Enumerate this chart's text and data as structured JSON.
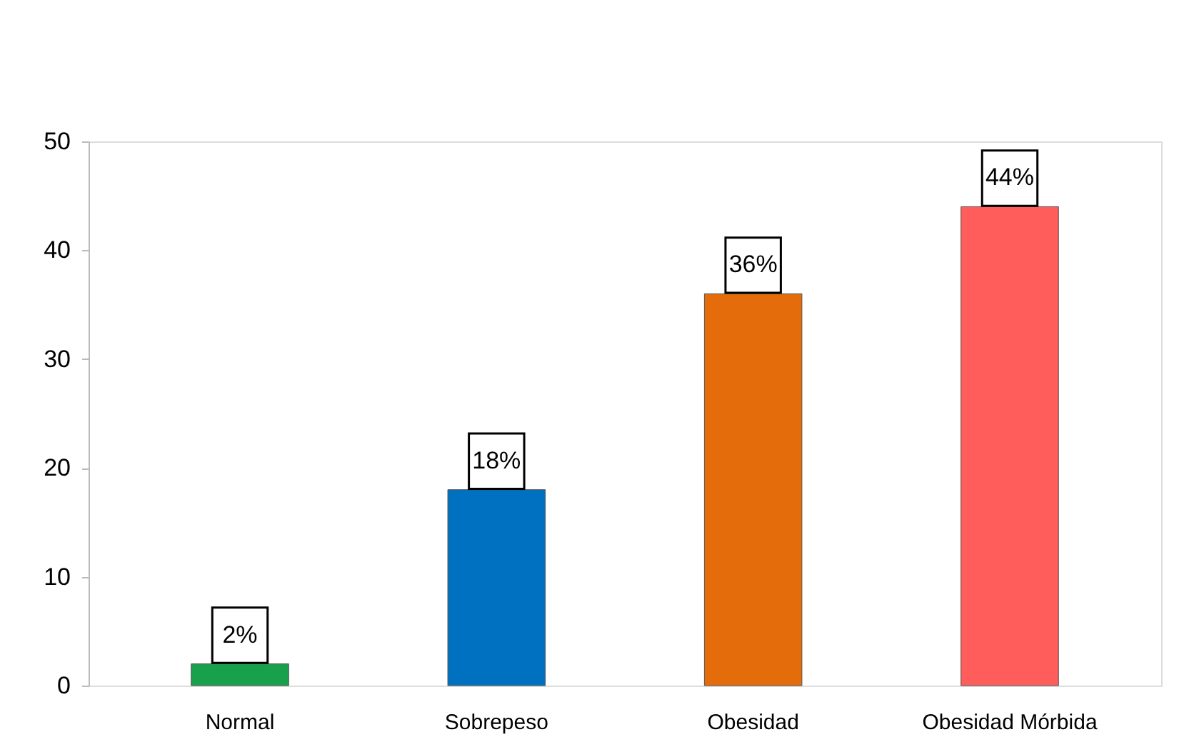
{
  "chart_data": {
    "type": "bar",
    "categories": [
      "Normal",
      "Sobrepeso",
      "Obesidad",
      "Obesidad  Mórbida"
    ],
    "values": [
      2,
      18,
      36,
      44
    ],
    "colors": [
      "#19a04b",
      "#0070c0",
      "#e46c0a",
      "#ff5c5c"
    ],
    "value_labels": [
      "2%",
      "18%",
      "36%",
      "44%"
    ],
    "ylim": [
      0,
      50
    ],
    "yticks": [
      0,
      10,
      20,
      30,
      40,
      50
    ],
    "grid": false
  }
}
